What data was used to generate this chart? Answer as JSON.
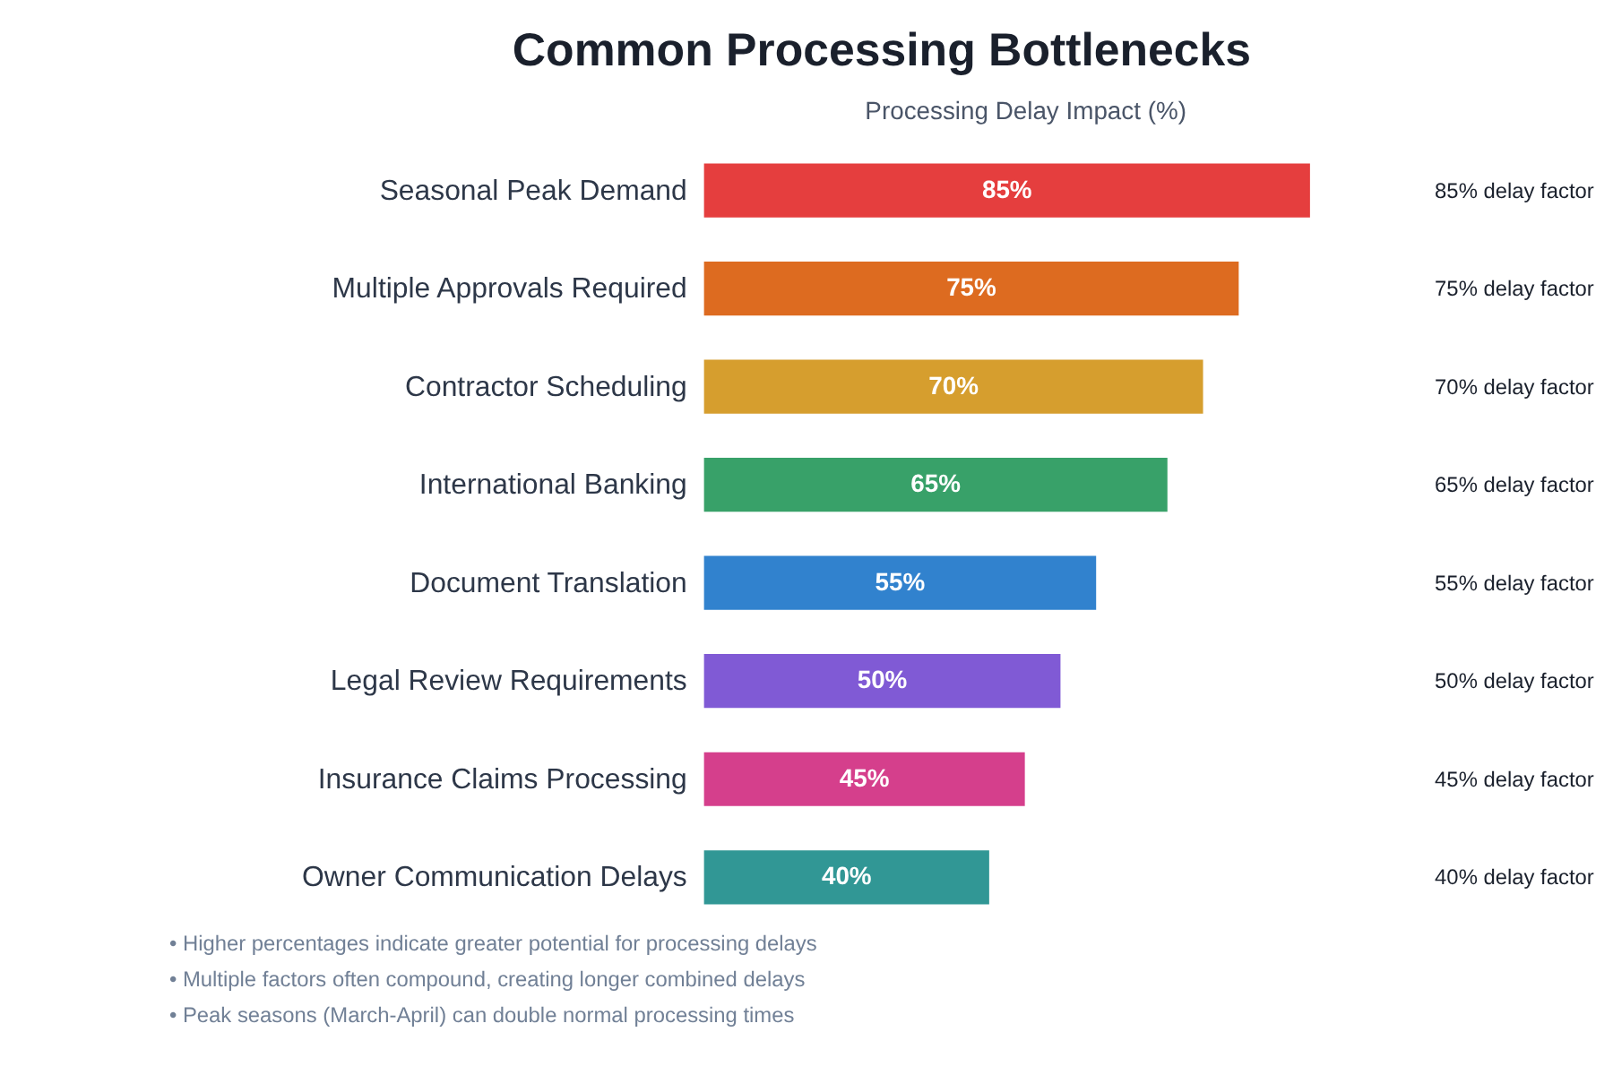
{
  "chart_data": {
    "type": "bar",
    "orientation": "horizontal",
    "title": "Common Processing Bottlenecks",
    "xlabel": "Processing Delay Impact (%)",
    "categories": [
      "Seasonal Peak Demand",
      "Multiple Approvals Required",
      "Contractor Scheduling",
      "International Banking",
      "Document Translation",
      "Legal Review Requirements",
      "Insurance Claims Processing",
      "Owner Communication Delays"
    ],
    "values": [
      85,
      75,
      70,
      65,
      55,
      50,
      45,
      40
    ],
    "colors": [
      "#e53e3e",
      "#dd6b20",
      "#d69e2e",
      "#38a169",
      "#3182ce",
      "#805ad5",
      "#d53f8c",
      "#319795"
    ],
    "value_labels": [
      "85%",
      "75%",
      "70%",
      "65%",
      "55%",
      "50%",
      "45%",
      "40%"
    ],
    "grid": false,
    "legend": false,
    "tick_labels": "y",
    "annotations": [
      "85% delay factor",
      "75% delay factor",
      "70% delay factor",
      "65% delay factor",
      "55% delay factor",
      "50% delay factor",
      "45% delay factor",
      "40% delay factor",
      "• Higher percentages indicate greater potential for processing delays",
      "• Multiple factors often compound, creating longer combined delays",
      "• Peak seasons (March-April) can double normal processing times"
    ]
  }
}
